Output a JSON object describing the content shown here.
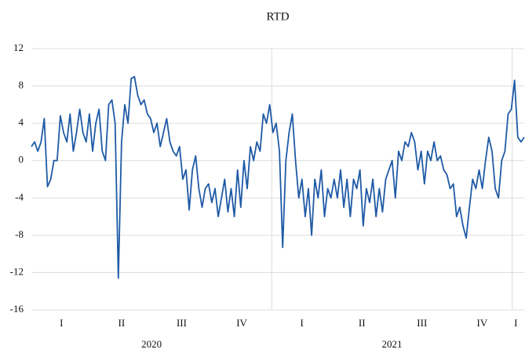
{
  "chart_data": {
    "type": "line",
    "title": "RTD",
    "quarter_labels": [
      "I",
      "II",
      "III",
      "IV",
      "I",
      "II",
      "III",
      "IV",
      "I"
    ],
    "year_labels": [
      "2020",
      "2021"
    ],
    "ylim": [
      -16,
      12
    ],
    "yticks": [
      -16,
      -12,
      -8,
      -4,
      0,
      4,
      8,
      12
    ],
    "grid": true,
    "series": [
      {
        "name": "RTD",
        "color": "#1f5aa6",
        "values": [
          1.5,
          2,
          1,
          2,
          4.5,
          -2.8,
          -2,
          0,
          0,
          4.8,
          3,
          2,
          5,
          1,
          3,
          5.5,
          3,
          2,
          5,
          1,
          4,
          5.5,
          1,
          0,
          6,
          6.5,
          4,
          -12.6,
          2,
          6,
          4,
          8.8,
          9,
          7,
          6,
          6.5,
          5,
          4.5,
          3,
          4,
          1.5,
          3,
          4.5,
          2,
          1,
          0.5,
          1.5,
          -2,
          -1,
          -5.3,
          -1,
          0.5,
          -3,
          -5,
          -3,
          -2.5,
          -4.5,
          -3,
          -6,
          -4,
          -2,
          -5.5,
          -3,
          -6,
          -1,
          -5,
          0,
          -3,
          1.5,
          0,
          2,
          1,
          5,
          4,
          6,
          3,
          4,
          1,
          -9.3,
          0,
          3,
          5,
          0,
          -4,
          -2,
          -6,
          -3,
          -8,
          -2,
          -4,
          -1,
          -6,
          -3,
          -4,
          -2,
          -4,
          -1,
          -5,
          -2,
          -6,
          -2,
          -3,
          -1,
          -7,
          -3,
          -4.5,
          -2,
          -6,
          -3,
          -5.5,
          -2,
          -1,
          0,
          -4,
          1,
          0,
          2,
          1.5,
          3,
          2,
          -1,
          1,
          -2.5,
          1,
          0,
          2,
          0,
          0.5,
          -1,
          -1.5,
          -3,
          -2.5,
          -6,
          -5,
          -7,
          -8.3,
          -5,
          -2,
          -3,
          -1,
          -3,
          0,
          2.5,
          1,
          -3,
          -4,
          0,
          1,
          5,
          5.5,
          8.6,
          2.5,
          2,
          2.5
        ]
      }
    ]
  }
}
